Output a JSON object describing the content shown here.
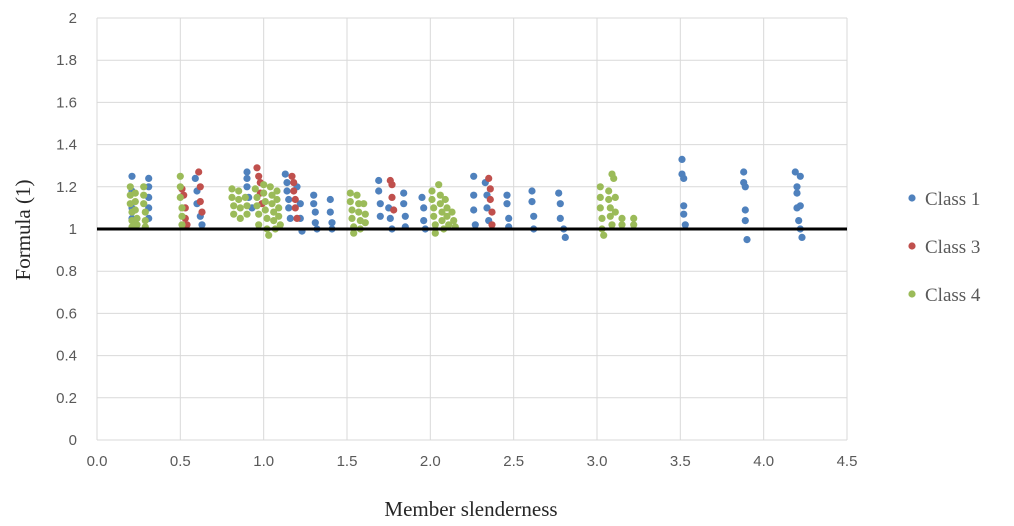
{
  "chart_data": {
    "type": "scatter",
    "title": "",
    "xlabel": "Member slenderness",
    "ylabel": "Formula (1)",
    "xlim": [
      0,
      4.5
    ],
    "ylim": [
      0,
      2
    ],
    "x_ticks": [
      "0.0",
      "0.5",
      "1.0",
      "1.5",
      "2.0",
      "2.5",
      "3.0",
      "3.5",
      "4.0",
      "4.5"
    ],
    "y_ticks": [
      "0",
      "0.2",
      "0.4",
      "0.6",
      "0.8",
      "1",
      "1.2",
      "1.4",
      "1.6",
      "1.8",
      "2"
    ],
    "grid": true,
    "legend_position": "right",
    "reference_line": {
      "y": 1.0,
      "color": "#000000"
    },
    "series": [
      {
        "name": "Class 1",
        "color": "#4f81bd",
        "points": [
          [
            0.21,
            1.25
          ],
          [
            0.21,
            1.18
          ],
          [
            0.21,
            1.1
          ],
          [
            0.21,
            1.05
          ],
          [
            0.31,
            1.24
          ],
          [
            0.31,
            1.2
          ],
          [
            0.31,
            1.15
          ],
          [
            0.31,
            1.1
          ],
          [
            0.31,
            1.05
          ],
          [
            0.59,
            1.24
          ],
          [
            0.6,
            1.18
          ],
          [
            0.6,
            1.12
          ],
          [
            0.62,
            1.06
          ],
          [
            0.63,
            1.02
          ],
          [
            0.9,
            1.27
          ],
          [
            0.9,
            1.24
          ],
          [
            0.9,
            1.2
          ],
          [
            0.91,
            1.15
          ],
          [
            0.93,
            1.1
          ],
          [
            1.13,
            1.26
          ],
          [
            1.14,
            1.22
          ],
          [
            1.14,
            1.18
          ],
          [
            1.15,
            1.14
          ],
          [
            1.15,
            1.1
          ],
          [
            1.16,
            1.05
          ],
          [
            1.2,
            1.2
          ],
          [
            1.22,
            1.12
          ],
          [
            1.22,
            1.05
          ],
          [
            1.23,
            0.99
          ],
          [
            1.3,
            1.16
          ],
          [
            1.3,
            1.12
          ],
          [
            1.31,
            1.08
          ],
          [
            1.31,
            1.03
          ],
          [
            1.32,
            1.0
          ],
          [
            1.4,
            1.14
          ],
          [
            1.4,
            1.08
          ],
          [
            1.41,
            1.03
          ],
          [
            1.41,
            1.0
          ],
          [
            1.69,
            1.23
          ],
          [
            1.69,
            1.18
          ],
          [
            1.7,
            1.12
          ],
          [
            1.7,
            1.06
          ],
          [
            1.75,
            1.1
          ],
          [
            1.76,
            1.05
          ],
          [
            1.77,
            1.0
          ],
          [
            1.84,
            1.17
          ],
          [
            1.84,
            1.12
          ],
          [
            1.85,
            1.06
          ],
          [
            1.85,
            1.01
          ],
          [
            1.95,
            1.15
          ],
          [
            1.96,
            1.1
          ],
          [
            1.96,
            1.04
          ],
          [
            1.97,
            1.0
          ],
          [
            2.26,
            1.25
          ],
          [
            2.26,
            1.16
          ],
          [
            2.26,
            1.09
          ],
          [
            2.27,
            1.02
          ],
          [
            2.33,
            1.22
          ],
          [
            2.34,
            1.16
          ],
          [
            2.34,
            1.1
          ],
          [
            2.35,
            1.04
          ],
          [
            2.46,
            1.16
          ],
          [
            2.46,
            1.12
          ],
          [
            2.47,
            1.05
          ],
          [
            2.47,
            1.01
          ],
          [
            2.61,
            1.18
          ],
          [
            2.61,
            1.13
          ],
          [
            2.62,
            1.06
          ],
          [
            2.62,
            1.0
          ],
          [
            2.77,
            1.17
          ],
          [
            2.78,
            1.12
          ],
          [
            2.78,
            1.05
          ],
          [
            2.8,
            1.0
          ],
          [
            2.81,
            0.96
          ],
          [
            3.51,
            1.33
          ],
          [
            3.51,
            1.26
          ],
          [
            3.52,
            1.24
          ],
          [
            3.52,
            1.11
          ],
          [
            3.52,
            1.07
          ],
          [
            3.53,
            1.02
          ],
          [
            3.88,
            1.27
          ],
          [
            3.88,
            1.22
          ],
          [
            3.89,
            1.2
          ],
          [
            3.89,
            1.09
          ],
          [
            3.89,
            1.04
          ],
          [
            3.9,
            0.95
          ],
          [
            4.19,
            1.27
          ],
          [
            4.2,
            1.2
          ],
          [
            4.2,
            1.17
          ],
          [
            4.2,
            1.1
          ],
          [
            4.21,
            1.04
          ],
          [
            4.22,
            1.25
          ],
          [
            4.22,
            1.11
          ],
          [
            4.22,
            1.0
          ],
          [
            4.23,
            0.96
          ]
        ]
      },
      {
        "name": "Class 3",
        "color": "#c0504d",
        "points": [
          [
            0.51,
            1.19
          ],
          [
            0.52,
            1.16
          ],
          [
            0.53,
            1.1
          ],
          [
            0.53,
            1.05
          ],
          [
            0.54,
            1.02
          ],
          [
            0.61,
            1.27
          ],
          [
            0.62,
            1.2
          ],
          [
            0.62,
            1.13
          ],
          [
            0.63,
            1.08
          ],
          [
            0.96,
            1.29
          ],
          [
            0.97,
            1.25
          ],
          [
            0.98,
            1.22
          ],
          [
            0.98,
            1.17
          ],
          [
            0.99,
            1.12
          ],
          [
            1.17,
            1.25
          ],
          [
            1.18,
            1.22
          ],
          [
            1.18,
            1.18
          ],
          [
            1.19,
            1.14
          ],
          [
            1.19,
            1.1
          ],
          [
            1.2,
            1.05
          ],
          [
            1.76,
            1.23
          ],
          [
            1.77,
            1.21
          ],
          [
            1.77,
            1.15
          ],
          [
            1.78,
            1.09
          ],
          [
            2.35,
            1.24
          ],
          [
            2.36,
            1.19
          ],
          [
            2.36,
            1.14
          ],
          [
            2.37,
            1.08
          ],
          [
            2.37,
            1.02
          ]
        ]
      },
      {
        "name": "Class 4",
        "color": "#9bbb59",
        "points": [
          [
            0.2,
            1.2
          ],
          [
            0.2,
            1.16
          ],
          [
            0.2,
            1.12
          ],
          [
            0.21,
            1.08
          ],
          [
            0.21,
            1.04
          ],
          [
            0.21,
            1.01
          ],
          [
            0.23,
            1.17
          ],
          [
            0.23,
            1.13
          ],
          [
            0.23,
            1.09
          ],
          [
            0.24,
            1.05
          ],
          [
            0.24,
            1.02
          ],
          [
            0.28,
            1.2
          ],
          [
            0.28,
            1.16
          ],
          [
            0.28,
            1.12
          ],
          [
            0.29,
            1.08
          ],
          [
            0.29,
            1.04
          ],
          [
            0.29,
            1.01
          ],
          [
            0.5,
            1.25
          ],
          [
            0.5,
            1.2
          ],
          [
            0.5,
            1.15
          ],
          [
            0.51,
            1.1
          ],
          [
            0.51,
            1.06
          ],
          [
            0.51,
            1.02
          ],
          [
            0.81,
            1.19
          ],
          [
            0.81,
            1.15
          ],
          [
            0.82,
            1.11
          ],
          [
            0.82,
            1.07
          ],
          [
            0.85,
            1.18
          ],
          [
            0.85,
            1.14
          ],
          [
            0.86,
            1.1
          ],
          [
            0.86,
            1.05
          ],
          [
            0.89,
            1.15
          ],
          [
            0.9,
            1.11
          ],
          [
            0.9,
            1.07
          ],
          [
            0.95,
            1.19
          ],
          [
            0.96,
            1.15
          ],
          [
            0.96,
            1.11
          ],
          [
            0.97,
            1.07
          ],
          [
            0.97,
            1.02
          ],
          [
            1.0,
            1.21
          ],
          [
            1.0,
            1.17
          ],
          [
            1.01,
            1.13
          ],
          [
            1.01,
            1.09
          ],
          [
            1.02,
            1.05
          ],
          [
            1.02,
            1.0
          ],
          [
            1.03,
            0.97
          ],
          [
            1.04,
            1.2
          ],
          [
            1.05,
            1.16
          ],
          [
            1.05,
            1.12
          ],
          [
            1.06,
            1.08
          ],
          [
            1.06,
            1.04
          ],
          [
            1.07,
            1.0
          ],
          [
            1.08,
            1.18
          ],
          [
            1.08,
            1.14
          ],
          [
            1.09,
            1.1
          ],
          [
            1.09,
            1.06
          ],
          [
            1.1,
            1.02
          ],
          [
            1.52,
            1.17
          ],
          [
            1.52,
            1.13
          ],
          [
            1.53,
            1.09
          ],
          [
            1.53,
            1.05
          ],
          [
            1.54,
            1.01
          ],
          [
            1.54,
            0.98
          ],
          [
            1.56,
            1.16
          ],
          [
            1.57,
            1.12
          ],
          [
            1.57,
            1.08
          ],
          [
            1.58,
            1.04
          ],
          [
            1.58,
            1.0
          ],
          [
            1.6,
            1.12
          ],
          [
            1.61,
            1.07
          ],
          [
            1.61,
            1.03
          ],
          [
            2.01,
            1.18
          ],
          [
            2.01,
            1.14
          ],
          [
            2.02,
            1.1
          ],
          [
            2.02,
            1.06
          ],
          [
            2.03,
            1.02
          ],
          [
            2.03,
            0.98
          ],
          [
            2.05,
            1.21
          ],
          [
            2.06,
            1.16
          ],
          [
            2.06,
            1.12
          ],
          [
            2.07,
            1.08
          ],
          [
            2.07,
            1.04
          ],
          [
            2.08,
            1.0
          ],
          [
            2.09,
            1.14
          ],
          [
            2.1,
            1.1
          ],
          [
            2.1,
            1.06
          ],
          [
            2.11,
            1.02
          ],
          [
            2.13,
            1.08
          ],
          [
            2.14,
            1.04
          ],
          [
            2.15,
            1.01
          ],
          [
            3.02,
            1.2
          ],
          [
            3.02,
            1.15
          ],
          [
            3.02,
            1.1
          ],
          [
            3.03,
            1.05
          ],
          [
            3.03,
            1.0
          ],
          [
            3.04,
            0.97
          ],
          [
            3.07,
            1.18
          ],
          [
            3.07,
            1.14
          ],
          [
            3.08,
            1.1
          ],
          [
            3.08,
            1.06
          ],
          [
            3.09,
            1.02
          ],
          [
            3.09,
            1.26
          ],
          [
            3.1,
            1.24
          ],
          [
            3.11,
            1.15
          ],
          [
            3.11,
            1.08
          ],
          [
            3.15,
            1.05
          ],
          [
            3.15,
            1.02
          ],
          [
            3.22,
            1.05
          ],
          [
            3.22,
            1.02
          ]
        ]
      }
    ]
  }
}
